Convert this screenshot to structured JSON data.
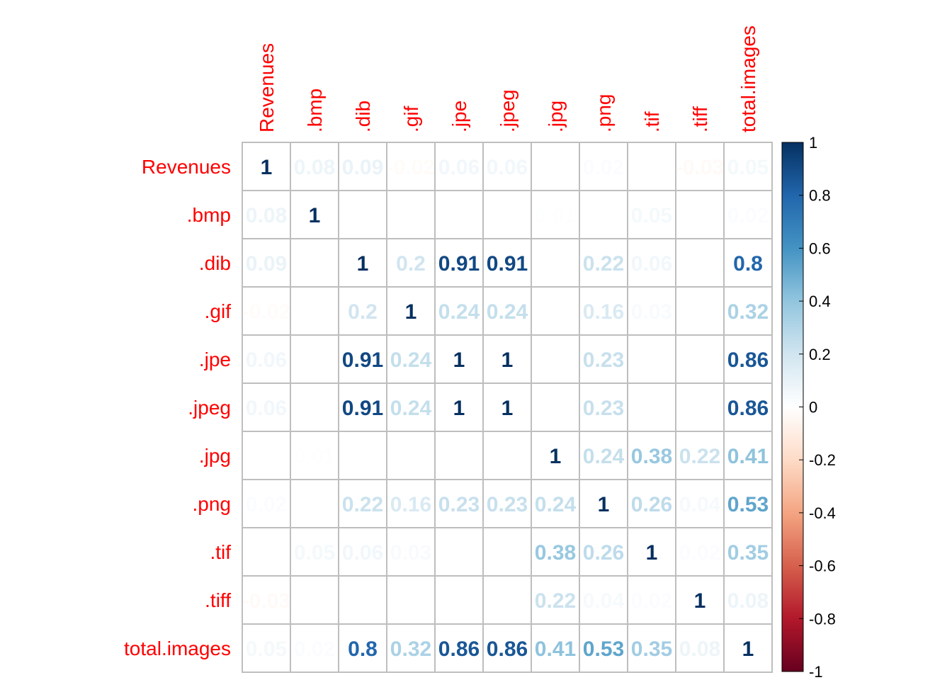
{
  "chart_data": {
    "type": "heatmap",
    "variables": [
      "Revenues",
      ".bmp",
      ".dib",
      ".gif",
      ".jpe",
      ".jpeg",
      ".jpg",
      ".png",
      ".tif",
      ".tiff",
      "total.images"
    ],
    "matrix": [
      [
        1,
        0.08,
        0.09,
        -0.02,
        0.06,
        0.06,
        0.0,
        0.02,
        0.0,
        -0.03,
        0.05
      ],
      [
        0.08,
        1,
        0.0,
        0.0,
        0.0,
        0.0,
        0.01,
        0.0,
        0.05,
        0.0,
        0.02
      ],
      [
        0.09,
        0.0,
        1,
        0.2,
        0.91,
        0.91,
        0.0,
        0.22,
        0.06,
        0.0,
        0.8
      ],
      [
        -0.02,
        0.0,
        0.2,
        1,
        0.24,
        0.24,
        0.0,
        0.16,
        0.03,
        0.0,
        0.32
      ],
      [
        0.06,
        0.0,
        0.91,
        0.24,
        1,
        1,
        0.0,
        0.23,
        0.0,
        0.0,
        0.86
      ],
      [
        0.06,
        0.0,
        0.91,
        0.24,
        1,
        1,
        0.0,
        0.23,
        0.0,
        0.0,
        0.86
      ],
      [
        0.0,
        0.01,
        0.0,
        0.0,
        0.0,
        0.0,
        1,
        0.24,
        0.38,
        0.22,
        0.41
      ],
      [
        0.02,
        0.0,
        0.22,
        0.16,
        0.23,
        0.23,
        0.24,
        1,
        0.26,
        0.04,
        0.53
      ],
      [
        0.0,
        0.05,
        0.06,
        0.03,
        0.0,
        0.0,
        0.38,
        0.26,
        1,
        0.02,
        0.35
      ],
      [
        -0.03,
        0.0,
        0.0,
        0.0,
        0.0,
        0.0,
        0.22,
        0.04,
        0.02,
        1,
        0.08
      ],
      [
        0.05,
        0.02,
        0.8,
        0.32,
        0.86,
        0.86,
        0.41,
        0.53,
        0.35,
        0.08,
        1
      ]
    ],
    "colorbar": {
      "ticks": [
        "1",
        "0.8",
        "0.6",
        "0.4",
        "0.2",
        "0",
        "-0.2",
        "-0.4",
        "-0.6",
        "-0.8",
        "-1"
      ],
      "range": [
        -1,
        1
      ]
    },
    "colors": {
      "label": "#ff0000",
      "grid": "#bebebe",
      "scale_stops": [
        "#67001f",
        "#b2182b",
        "#d6604d",
        "#f4a582",
        "#fddbc7",
        "#ffffff",
        "#d1e5f0",
        "#92c5de",
        "#4393c3",
        "#2166ac",
        "#053061"
      ]
    },
    "xlabel": "",
    "ylabel": "",
    "title": ""
  }
}
